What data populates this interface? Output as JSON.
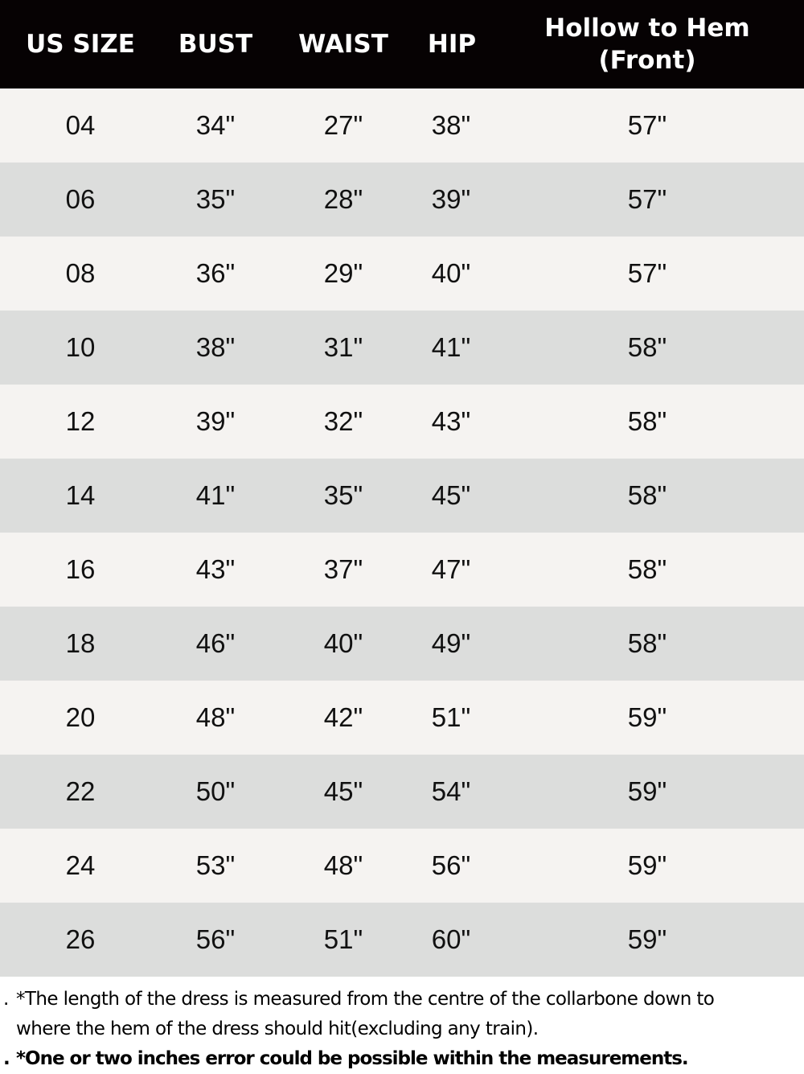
{
  "columns": [
    "US SIZE",
    "BUST",
    "WAIST",
    "HIP",
    "Hollow to Hem",
    "(Front)"
  ],
  "rows": [
    [
      "04",
      "34\"",
      "27\"",
      "38\"",
      "57\""
    ],
    [
      "06",
      "35\"",
      "28\"",
      "39\"",
      "57\""
    ],
    [
      "08",
      "36\"",
      "29\"",
      "40\"",
      "57\""
    ],
    [
      "10",
      "38\"",
      "31\"",
      "41\"",
      "58\""
    ],
    [
      "12",
      "39\"",
      "32\"",
      "43\"",
      "58\""
    ],
    [
      "14",
      "41\"",
      "35\"",
      "45\"",
      "58\""
    ],
    [
      "16",
      "43\"",
      "37\"",
      "47\"",
      "58\""
    ],
    [
      "18",
      "46\"",
      "40\"",
      "49\"",
      "58\""
    ],
    [
      "20",
      "48\"",
      "42\"",
      "51\"",
      "59\""
    ],
    [
      "22",
      "50\"",
      "45\"",
      "54\"",
      "59\""
    ],
    [
      "24",
      "53\"",
      "48\"",
      "56\"",
      "59\""
    ],
    [
      "26",
      "56\"",
      "51\"",
      "60\"",
      "59\""
    ]
  ],
  "notes": {
    "bullet": ".",
    "line1": "*The length of the dress is measured from the centre of the collarbone down to",
    "line2": "where the hem of the dress should hit(excluding any train).",
    "line3": "*One or two inches error could be possible within the measurements."
  },
  "colors": {
    "header_bg": "#060203",
    "row_light": "#f5f3f1",
    "row_dark": "#dcdddc"
  }
}
